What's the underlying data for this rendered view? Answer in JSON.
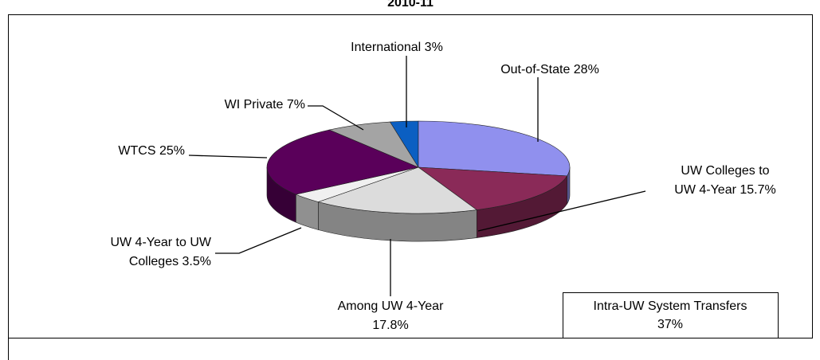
{
  "chart_data": {
    "type": "pie3d",
    "title": "2010-11",
    "labels": [
      [
        "International 3%"
      ],
      [
        "Out-of-State 28%"
      ],
      [
        "UW Colleges to",
        "UW 4-Year 15.7%"
      ],
      [
        "Among UW 4-Year",
        "17.8%"
      ],
      [
        "UW 4-Year to UW",
        "Colleges 3.5%"
      ],
      [
        "WTCS 25%"
      ],
      [
        "WI Private 7%"
      ]
    ],
    "values": [
      3,
      28,
      15.7,
      17.8,
      3.5,
      25,
      7
    ],
    "colors": [
      "#0b5fc2",
      "#9090ee",
      "#8a2a58",
      "#dcdcdc",
      "#f0f0f0",
      "#5a005a",
      "#a4a4a4"
    ],
    "annotation": [
      "Intra-UW System Transfers",
      "37%"
    ]
  }
}
